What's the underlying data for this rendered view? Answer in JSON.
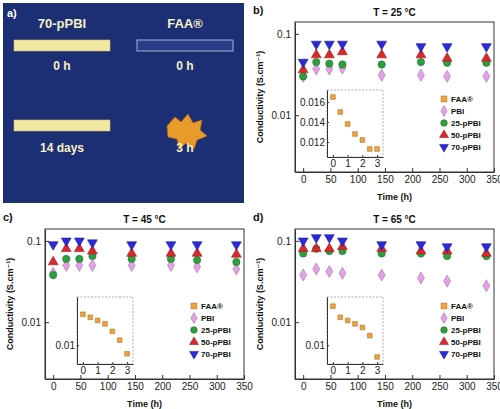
{
  "photo": {
    "panel": "a)",
    "samples": [
      {
        "name": "70-pPBI",
        "times": [
          "0 h",
          "14 days"
        ]
      },
      {
        "name": "FAA®",
        "times": [
          "0 h",
          "3 h"
        ]
      }
    ]
  },
  "chart_data": [
    {
      "type": "scatter",
      "panel": "b)",
      "annotation": "T = 25 °C",
      "x_label": "Time (h)",
      "y_label": "Conductivity (S.cm⁻¹)",
      "log": "y",
      "xlim": [
        -15,
        350
      ],
      "ylim": [
        0.002,
        0.14
      ],
      "xticks": [
        0,
        50,
        100,
        150,
        200,
        250,
        300,
        350
      ],
      "yticks": [
        0.01,
        0.1
      ],
      "legend": "right",
      "x": [
        0,
        24,
        48,
        72,
        144,
        216,
        264,
        336
      ],
      "series": [
        {
          "name": "PBI",
          "color": "#e3a1e6",
          "marker": "diamond",
          "values": [
            0.03,
            0.037,
            0.037,
            0.038,
            0.031,
            0.031,
            0.03,
            0.03
          ]
        },
        {
          "name": "25-pPBI",
          "color": "#2e9e3e",
          "marker": "circle",
          "values": [
            0.03,
            0.045,
            0.043,
            0.042,
            0.042,
            0.045,
            0.044,
            0.044
          ]
        },
        {
          "name": "50-pPBI",
          "color": "#d8282c",
          "marker": "triangle-up",
          "values": [
            0.036,
            0.055,
            0.055,
            0.06,
            0.055,
            0.055,
            0.05,
            0.05
          ]
        },
        {
          "name": "70-pPBI",
          "color": "#2a2ad8",
          "marker": "triangle-down",
          "values": [
            0.045,
            0.075,
            0.075,
            0.075,
            0.075,
            0.07,
            0.07,
            0.07
          ]
        }
      ],
      "inset": {
        "type": "scatter",
        "xlim": [
          -0.4,
          3.4
        ],
        "ylim": [
          0.0105,
          0.0172
        ],
        "xticks": [
          0,
          1,
          2,
          3
        ],
        "yticks": [
          0.012,
          0.014,
          0.016
        ],
        "x": [
          0,
          0.5,
          1,
          1.5,
          2,
          2.5,
          3
        ],
        "series": [
          {
            "name": "FAA®",
            "color": "#f0a23c",
            "marker": "square",
            "values": [
              0.0165,
              0.015,
              0.0138,
              0.0128,
              0.0122,
              0.0113,
              0.0113
            ]
          }
        ]
      }
    },
    {
      "type": "scatter",
      "panel": "c)",
      "annotation": "T = 45 °C",
      "x_label": "Time (h)",
      "y_label": "Conductivity (S.cm⁻¹)",
      "log": "y",
      "xlim": [
        -15,
        350
      ],
      "ylim": [
        0.002,
        0.14
      ],
      "xticks": [
        0,
        50,
        100,
        150,
        200,
        250,
        300,
        350
      ],
      "yticks": [
        0.01,
        0.1
      ],
      "legend": "right",
      "x": [
        0,
        24,
        48,
        72,
        144,
        216,
        264,
        336
      ],
      "series": [
        {
          "name": "PBI",
          "color": "#e3a1e6",
          "marker": "diamond",
          "values": [
            0.04,
            0.05,
            0.05,
            0.05,
            0.05,
            0.05,
            0.048,
            0.045
          ]
        },
        {
          "name": "25-pPBI",
          "color": "#2e9e3e",
          "marker": "circle",
          "values": [
            0.038,
            0.06,
            0.06,
            0.065,
            0.06,
            0.06,
            0.058,
            0.055
          ]
        },
        {
          "name": "50-pPBI",
          "color": "#d8282c",
          "marker": "triangle-up",
          "values": [
            0.055,
            0.08,
            0.08,
            0.075,
            0.07,
            0.07,
            0.07,
            0.068
          ]
        },
        {
          "name": "70-pPBI",
          "color": "#2a2ad8",
          "marker": "triangle-down",
          "values": [
            0.09,
            0.1,
            0.1,
            0.095,
            0.09,
            0.09,
            0.09,
            0.09
          ]
        }
      ],
      "inset": {
        "type": "scatter",
        "log": "y",
        "xlim": [
          -0.4,
          3.4
        ],
        "ylim": [
          0.007,
          0.025
        ],
        "xticks": [
          0,
          1,
          2,
          3
        ],
        "yticks": [
          0.01
        ],
        "x": [
          0,
          0.5,
          1,
          1.5,
          2,
          2.5,
          3
        ],
        "series": [
          {
            "name": "FAA®",
            "color": "#f0a23c",
            "marker": "square",
            "values": [
              0.018,
              0.017,
              0.016,
              0.015,
              0.013,
              0.011,
              0.0085
            ]
          }
        ]
      }
    },
    {
      "type": "scatter",
      "panel": "d)",
      "annotation": "T = 65 °C",
      "x_label": "Time (h)",
      "y_label": "Conductivity (S.cm⁻¹)",
      "log": "y",
      "xlim": [
        -15,
        350
      ],
      "ylim": [
        0.002,
        0.14
      ],
      "xticks": [
        0,
        50,
        100,
        150,
        200,
        250,
        300,
        350
      ],
      "yticks": [
        0.01,
        0.1
      ],
      "legend": "right",
      "x": [
        0,
        24,
        48,
        72,
        144,
        216,
        264,
        336
      ],
      "series": [
        {
          "name": "PBI",
          "color": "#e3a1e6",
          "marker": "diamond",
          "values": [
            0.038,
            0.045,
            0.042,
            0.04,
            0.038,
            0.035,
            0.032,
            0.028
          ]
        },
        {
          "name": "25-pPBI",
          "color": "#2e9e3e",
          "marker": "circle",
          "values": [
            0.07,
            0.08,
            0.075,
            0.075,
            0.07,
            0.07,
            0.065,
            0.065
          ]
        },
        {
          "name": "50-pPBI",
          "color": "#d8282c",
          "marker": "triangle-up",
          "values": [
            0.08,
            0.08,
            0.08,
            0.085,
            0.08,
            0.075,
            0.075,
            0.07
          ]
        },
        {
          "name": "70-pPBI",
          "color": "#2a2ad8",
          "marker": "triangle-down",
          "values": [
            0.1,
            0.11,
            0.11,
            0.1,
            0.09,
            0.09,
            0.085,
            0.085
          ]
        }
      ],
      "inset": {
        "type": "scatter",
        "log": "y",
        "xlim": [
          -0.4,
          3.4
        ],
        "ylim": [
          0.007,
          0.025
        ],
        "xticks": [
          0,
          1,
          2,
          3
        ],
        "yticks": [
          0.01
        ],
        "x": [
          0,
          0.5,
          1,
          1.5,
          2,
          2.5,
          3
        ],
        "series": [
          {
            "name": "FAA®",
            "color": "#f0a23c",
            "marker": "square",
            "values": [
              0.021,
              0.017,
              0.016,
              0.015,
              0.014,
              0.012,
              0.008
            ]
          }
        ]
      }
    }
  ]
}
